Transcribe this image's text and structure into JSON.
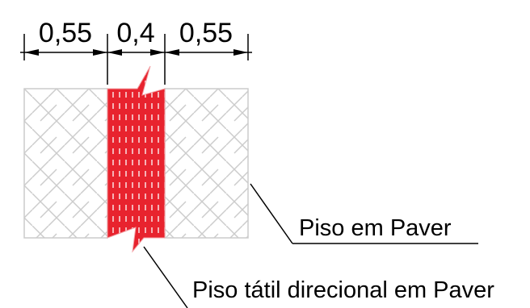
{
  "dimensions": [
    {
      "label": "0,55"
    },
    {
      "label": "0,4"
    },
    {
      "label": "0,55"
    }
  ],
  "labels": {
    "paver": "Piso em Paver",
    "tactile": "Piso tátil direcional em Paver"
  },
  "colors": {
    "paver_pattern": "#cccccc",
    "tactile_fill": "#e8232e",
    "tactile_stripe": "#ffffff",
    "line": "#000000"
  }
}
